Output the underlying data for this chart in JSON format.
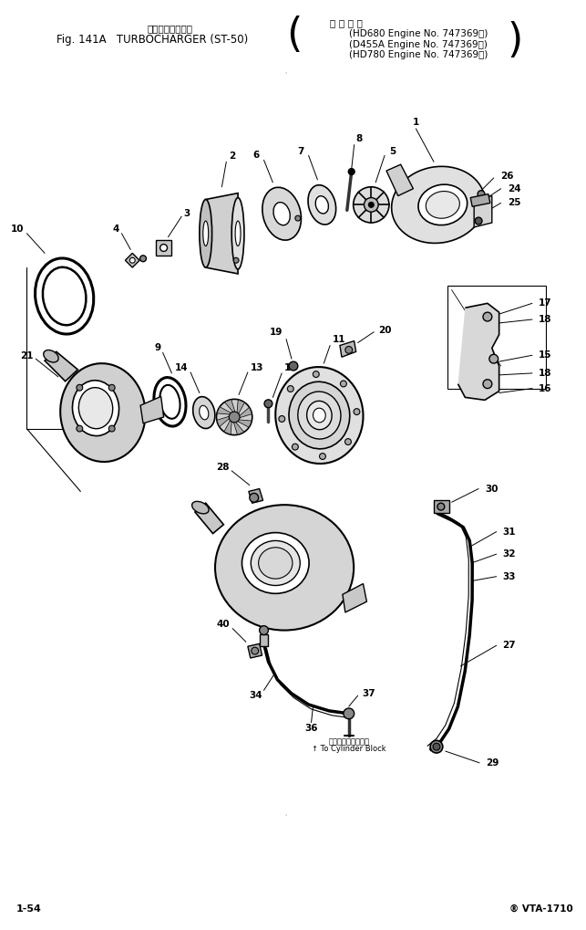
{
  "bg_color": "#ffffff",
  "title_jp": "ターボチャージャ",
  "title_en": "Fig. 141A   TURBOCHARGER (ST-50)",
  "applicable_title": "適 用 号 機",
  "applicable_lines": [
    "(HD680 Engine No. 747369～)",
    "(D455A Engine No. 747369～)",
    "(HD780 Engine No. 747369～)"
  ],
  "footer_left": "1-54",
  "footer_right": "® VTA-1710"
}
